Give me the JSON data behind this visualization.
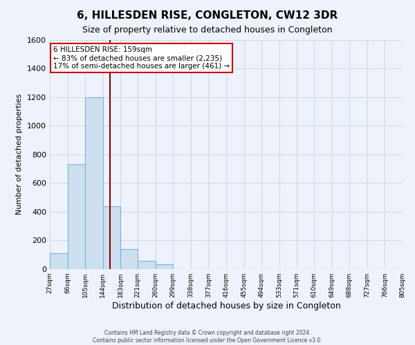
{
  "title": "6, HILLESDEN RISE, CONGLETON, CW12 3DR",
  "subtitle": "Size of property relative to detached houses in Congleton",
  "xlabel": "Distribution of detached houses by size in Congleton",
  "ylabel": "Number of detached properties",
  "bar_edges": [
    27,
    66,
    105,
    144,
    183,
    221,
    260,
    299,
    338,
    377,
    416,
    455,
    494,
    533,
    571,
    610,
    649,
    688,
    727,
    766,
    805
  ],
  "bar_heights": [
    110,
    730,
    1200,
    440,
    140,
    60,
    35,
    0,
    0,
    0,
    0,
    0,
    0,
    0,
    0,
    0,
    0,
    0,
    0,
    0
  ],
  "bar_color": "#cce0f0",
  "bar_edge_color": "#7ab3d4",
  "property_line_x": 159,
  "property_line_color": "#8b0000",
  "annotation_title": "6 HILLESDEN RISE: 159sqm",
  "annotation_line1": "← 83% of detached houses are smaller (2,235)",
  "annotation_line2": "17% of semi-detached houses are larger (461) →",
  "annotation_box_color": "#ffffff",
  "annotation_box_edge": "#cc0000",
  "ylim": [
    0,
    1600
  ],
  "yticks": [
    0,
    200,
    400,
    600,
    800,
    1000,
    1200,
    1400,
    1600
  ],
  "xtick_labels": [
    "27sqm",
    "66sqm",
    "105sqm",
    "144sqm",
    "183sqm",
    "221sqm",
    "260sqm",
    "299sqm",
    "338sqm",
    "377sqm",
    "416sqm",
    "455sqm",
    "494sqm",
    "533sqm",
    "571sqm",
    "610sqm",
    "649sqm",
    "688sqm",
    "727sqm",
    "766sqm",
    "805sqm"
  ],
  "background_color": "#eef2fb",
  "grid_color": "#d0d8e8",
  "footer_line1": "Contains HM Land Registry data © Crown copyright and database right 2024.",
  "footer_line2": "Contains public sector information licensed under the Open Government Licence v3.0."
}
